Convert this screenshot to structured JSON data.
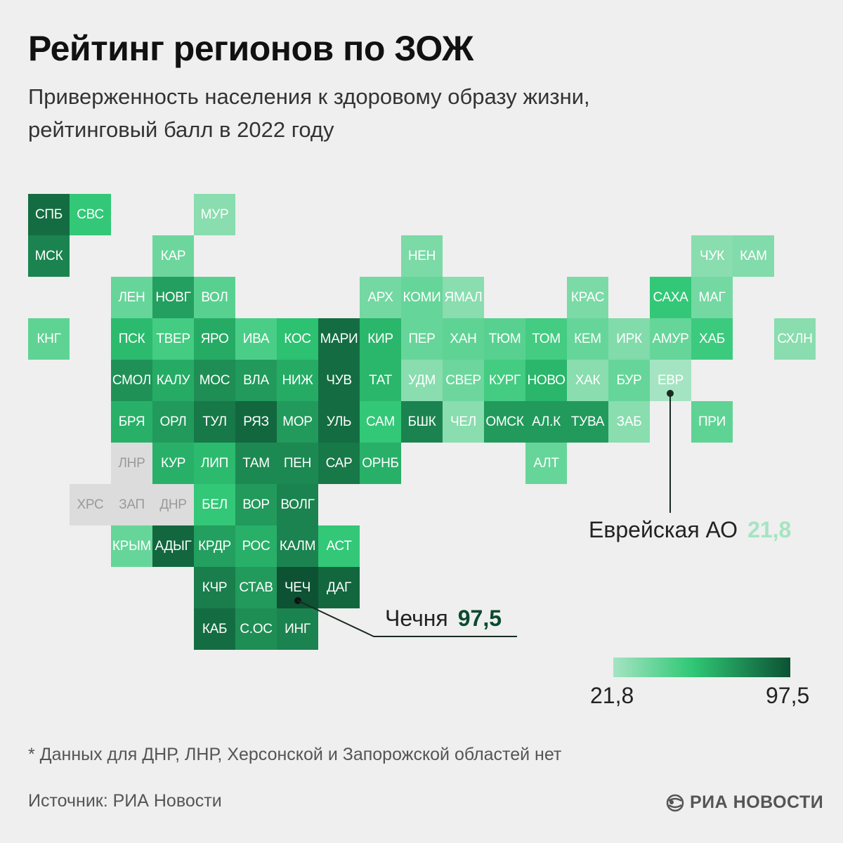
{
  "header": {
    "title": "Рейтинг регионов по ЗОЖ",
    "subtitle_line1": "Приверженность населения к здоровому образу жизни,",
    "subtitle_line2": "рейтинговый балл в 2022 году"
  },
  "colors": {
    "background": "#efefef",
    "no_data": "#dcdcdc",
    "scale_min": "#a5e4c2",
    "scale_mid": "#2fc775",
    "scale_max": "#0c5233",
    "accent_dark": "#0c4a2e",
    "accent_light": "#a5e4c2"
  },
  "chart_data": {
    "type": "heatmap",
    "value_range": [
      21.8,
      97.5
    ],
    "note": "",
    "regions": [
      {
        "code": "СПБ",
        "col": 0,
        "row": 0,
        "value": 88
      },
      {
        "code": "СВС",
        "col": 1,
        "row": 0,
        "value": 55
      },
      {
        "code": "МУР",
        "col": 4,
        "row": 0,
        "value": 30
      },
      {
        "code": "МСК",
        "col": 0,
        "row": 1,
        "value": 80
      },
      {
        "code": "КАР",
        "col": 3,
        "row": 1,
        "value": 38
      },
      {
        "code": "НЕН",
        "col": 9,
        "row": 1,
        "value": 34
      },
      {
        "code": "ЧУК",
        "col": 16,
        "row": 1,
        "value": 30
      },
      {
        "code": "КАМ",
        "col": 17,
        "row": 1,
        "value": 32
      },
      {
        "code": "ЛЕН",
        "col": 2,
        "row": 2,
        "value": 40
      },
      {
        "code": "НОВГ",
        "col": 3,
        "row": 2,
        "value": 70
      },
      {
        "code": "ВОЛ",
        "col": 4,
        "row": 2,
        "value": 44
      },
      {
        "code": "АРХ",
        "col": 8,
        "row": 2,
        "value": 36
      },
      {
        "code": "КОМИ",
        "col": 9,
        "row": 2,
        "value": 40
      },
      {
        "code": "ЯМАЛ",
        "col": 10,
        "row": 2,
        "value": 30
      },
      {
        "code": "КРАС",
        "col": 13,
        "row": 2,
        "value": 34
      },
      {
        "code": "САХА",
        "col": 15,
        "row": 2,
        "value": 55
      },
      {
        "code": "МАГ",
        "col": 16,
        "row": 2,
        "value": 36
      },
      {
        "code": "КНГ",
        "col": 0,
        "row": 3,
        "value": 42
      },
      {
        "code": "ПСК",
        "col": 2,
        "row": 3,
        "value": 60
      },
      {
        "code": "ТВЕР",
        "col": 3,
        "row": 3,
        "value": 50
      },
      {
        "code": "ЯРО",
        "col": 4,
        "row": 3,
        "value": 66
      },
      {
        "code": "ИВА",
        "col": 5,
        "row": 3,
        "value": 48
      },
      {
        "code": "КОС",
        "col": 6,
        "row": 3,
        "value": 58
      },
      {
        "code": "МАРИ",
        "col": 7,
        "row": 3,
        "value": 88
      },
      {
        "code": "КИР",
        "col": 8,
        "row": 3,
        "value": 62
      },
      {
        "code": "ПЕР",
        "col": 9,
        "row": 3,
        "value": 40
      },
      {
        "code": "ХАН",
        "col": 10,
        "row": 3,
        "value": 42
      },
      {
        "code": "ТЮМ",
        "col": 11,
        "row": 3,
        "value": 44
      },
      {
        "code": "ТОМ",
        "col": 12,
        "row": 3,
        "value": 50
      },
      {
        "code": "КЕМ",
        "col": 13,
        "row": 3,
        "value": 40
      },
      {
        "code": "ИРК",
        "col": 14,
        "row": 3,
        "value": 32
      },
      {
        "code": "АМУР",
        "col": 15,
        "row": 3,
        "value": 40
      },
      {
        "code": "ХАБ",
        "col": 16,
        "row": 3,
        "value": 52
      },
      {
        "code": "СХЛН",
        "col": 18,
        "row": 3,
        "value": 30
      },
      {
        "code": "СМОЛ",
        "col": 2,
        "row": 4,
        "value": 75
      },
      {
        "code": "КАЛУ",
        "col": 3,
        "row": 4,
        "value": 66
      },
      {
        "code": "МОС",
        "col": 4,
        "row": 4,
        "value": 76
      },
      {
        "code": "ВЛА",
        "col": 5,
        "row": 4,
        "value": 72
      },
      {
        "code": "НИЖ",
        "col": 6,
        "row": 4,
        "value": 66
      },
      {
        "code": "ЧУВ",
        "col": 7,
        "row": 4,
        "value": 88
      },
      {
        "code": "ТАТ",
        "col": 8,
        "row": 4,
        "value": 62
      },
      {
        "code": "УДМ",
        "col": 9,
        "row": 4,
        "value": 30
      },
      {
        "code": "СВЕР",
        "col": 10,
        "row": 4,
        "value": 38
      },
      {
        "code": "КУРГ",
        "col": 11,
        "row": 4,
        "value": 50
      },
      {
        "code": "НОВО",
        "col": 12,
        "row": 4,
        "value": 62
      },
      {
        "code": "ХАК",
        "col": 13,
        "row": 4,
        "value": 30
      },
      {
        "code": "БУР",
        "col": 14,
        "row": 4,
        "value": 40
      },
      {
        "code": "ЕВР",
        "col": 15,
        "row": 4,
        "value": 21.8
      },
      {
        "code": "БРЯ",
        "col": 2,
        "row": 5,
        "value": 64
      },
      {
        "code": "ОРЛ",
        "col": 3,
        "row": 5,
        "value": 72
      },
      {
        "code": "ТУЛ",
        "col": 4,
        "row": 5,
        "value": 84
      },
      {
        "code": "РЯЗ",
        "col": 5,
        "row": 5,
        "value": 90
      },
      {
        "code": "МОР",
        "col": 6,
        "row": 5,
        "value": 72
      },
      {
        "code": "УЛЬ",
        "col": 7,
        "row": 5,
        "value": 88
      },
      {
        "code": "САМ",
        "col": 8,
        "row": 5,
        "value": 55
      },
      {
        "code": "БШК",
        "col": 9,
        "row": 5,
        "value": 80
      },
      {
        "code": "ЧЕЛ",
        "col": 10,
        "row": 5,
        "value": 30
      },
      {
        "code": "ОМСК",
        "col": 11,
        "row": 5,
        "value": 72
      },
      {
        "code": "АЛ.К",
        "col": 12,
        "row": 5,
        "value": 72
      },
      {
        "code": "ТУВА",
        "col": 13,
        "row": 5,
        "value": 72
      },
      {
        "code": "ЗАБ",
        "col": 14,
        "row": 5,
        "value": 30
      },
      {
        "code": "ПРИ",
        "col": 16,
        "row": 5,
        "value": 42
      },
      {
        "code": "ЛНР",
        "col": 2,
        "row": 6,
        "value": null
      },
      {
        "code": "КУР",
        "col": 3,
        "row": 6,
        "value": 64
      },
      {
        "code": "ЛИП",
        "col": 4,
        "row": 6,
        "value": 60
      },
      {
        "code": "ТАМ",
        "col": 5,
        "row": 6,
        "value": 78
      },
      {
        "code": "ПЕН",
        "col": 6,
        "row": 6,
        "value": 78
      },
      {
        "code": "САР",
        "col": 7,
        "row": 6,
        "value": 84
      },
      {
        "code": "ОРНБ",
        "col": 8,
        "row": 6,
        "value": 64
      },
      {
        "code": "АЛТ",
        "col": 12,
        "row": 6,
        "value": 40
      },
      {
        "code": "ХРС",
        "col": 1,
        "row": 7,
        "value": null
      },
      {
        "code": "ЗАП",
        "col": 2,
        "row": 7,
        "value": null
      },
      {
        "code": "ДНР",
        "col": 3,
        "row": 7,
        "value": null
      },
      {
        "code": "БЕЛ",
        "col": 4,
        "row": 7,
        "value": 55
      },
      {
        "code": "ВОР",
        "col": 5,
        "row": 7,
        "value": 72
      },
      {
        "code": "ВОЛГ",
        "col": 6,
        "row": 7,
        "value": 80
      },
      {
        "code": "КРЫМ",
        "col": 2,
        "row": 8,
        "value": 40
      },
      {
        "code": "АДЫГ",
        "col": 3,
        "row": 8,
        "value": 90
      },
      {
        "code": "КРДР",
        "col": 4,
        "row": 8,
        "value": 70
      },
      {
        "code": "РОС",
        "col": 5,
        "row": 8,
        "value": 64
      },
      {
        "code": "КАЛМ",
        "col": 6,
        "row": 8,
        "value": 80
      },
      {
        "code": "АСТ",
        "col": 7,
        "row": 8,
        "value": 55
      },
      {
        "code": "КЧР",
        "col": 4,
        "row": 9,
        "value": 82
      },
      {
        "code": "СТАВ",
        "col": 5,
        "row": 9,
        "value": 72
      },
      {
        "code": "ЧЕЧ",
        "col": 6,
        "row": 9,
        "value": 97.5
      },
      {
        "code": "ДАГ",
        "col": 7,
        "row": 9,
        "value": 90
      },
      {
        "code": "КАБ",
        "col": 4,
        "row": 10,
        "value": 88
      },
      {
        "code": "С.ОС",
        "col": 5,
        "row": 10,
        "value": 76
      },
      {
        "code": "ИНГ",
        "col": 6,
        "row": 10,
        "value": 80
      }
    ]
  },
  "callouts": [
    {
      "label": "Еврейская АО",
      "value": "21,8",
      "region": "ЕВР"
    },
    {
      "label": "Чечня",
      "value": "97,5",
      "region": "ЧЕЧ"
    }
  ],
  "legend": {
    "min_label": "21,8",
    "max_label": "97,5"
  },
  "footer": {
    "footnote": "* Данных для ДНР, ЛНР, Херсонской и Запорожской областей нет",
    "source": "Источник: РИА Новости",
    "logo_text": "РИА НОВОСТИ",
    "logo_icon": "ria-globe-icon"
  }
}
